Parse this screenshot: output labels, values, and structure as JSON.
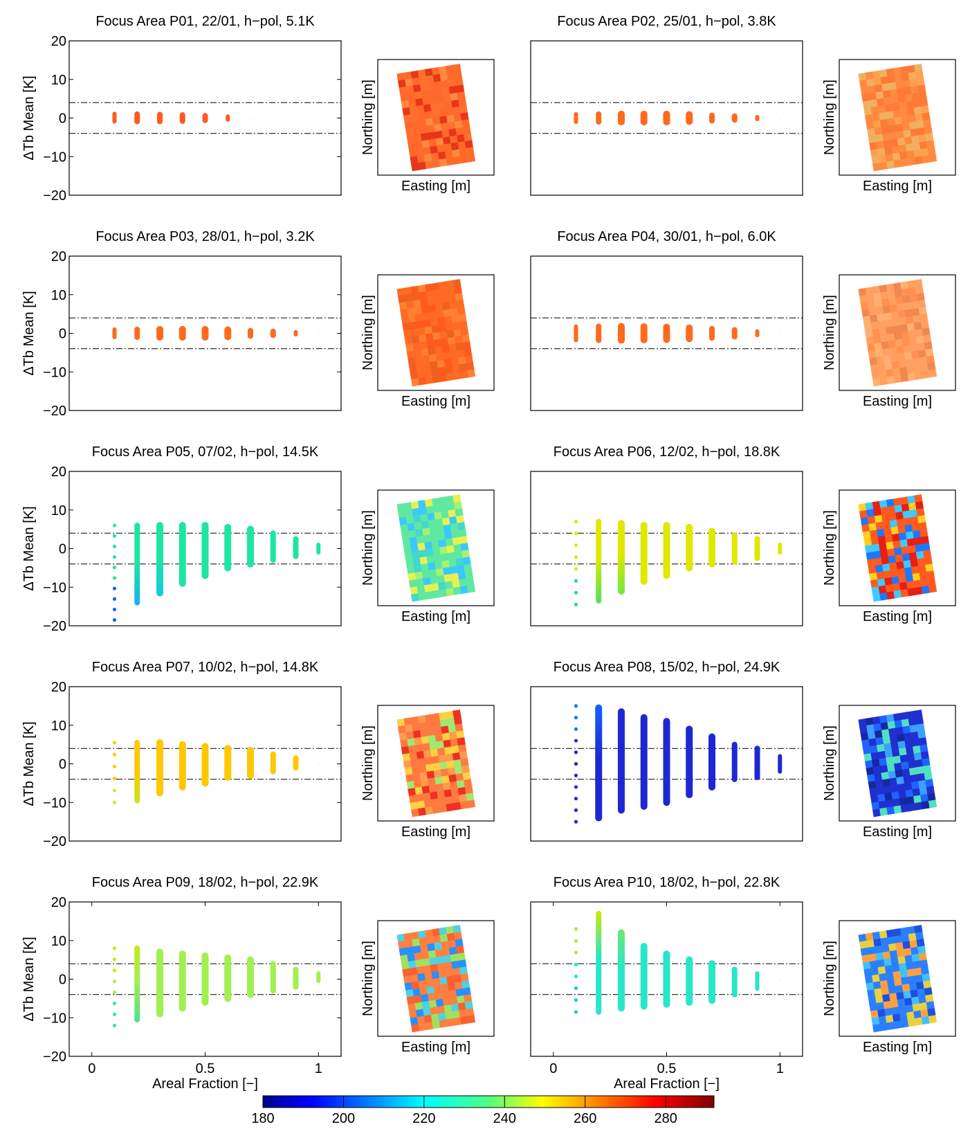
{
  "figure": {
    "colorbar": {
      "min": 180,
      "max": 292,
      "ticks": [
        "180",
        "200",
        "220",
        "240",
        "260",
        "280"
      ],
      "colormap": "jet"
    }
  },
  "chart_data": [
    {
      "type": "scatter",
      "title": "Focus Area  P01, 22/01, h−pol, 5.1K",
      "ylabel": "ΔTb Mean [K]",
      "xlabel": "",
      "ylim": [
        -20,
        20
      ],
      "xlim": [
        -0.1,
        1.1
      ],
      "yticks": [
        "−20",
        "−10",
        "0",
        "10",
        "20"
      ],
      "xticks": [],
      "reference_lines": [
        4,
        -4
      ],
      "marker_color": "#ff5a1e",
      "columns": [
        {
          "x": 0.1,
          "ymin": -0.9,
          "ymax": 1.1,
          "size": 3
        },
        {
          "x": 0.2,
          "ymin": -0.9,
          "ymax": 1.0,
          "size": 4
        },
        {
          "x": 0.3,
          "ymin": -0.9,
          "ymax": 0.9,
          "size": 4
        },
        {
          "x": 0.4,
          "ymin": -0.8,
          "ymax": 0.8,
          "size": 4
        },
        {
          "x": 0.5,
          "ymin": -0.6,
          "ymax": 0.6,
          "size": 4
        },
        {
          "x": 0.6,
          "ymin": -0.4,
          "ymax": 0.4,
          "size": 3
        },
        {
          "x": 0.7,
          "ymin": 0,
          "ymax": 0,
          "size": 1
        }
      ],
      "map": {
        "xlabel": "Easting [m]",
        "ylabel": "Northing [m]",
        "base_color": "#ff6a2a",
        "variation": [
          "#e8361a",
          "#ff8a40",
          "#ff7030"
        ]
      }
    },
    {
      "type": "scatter",
      "title": "Focus Area  P02, 25/01, h−pol, 3.8K",
      "ylabel": "",
      "xlabel": "",
      "ylim": [
        -20,
        20
      ],
      "xlim": [
        -0.1,
        1.1
      ],
      "yticks": [],
      "xticks": [],
      "reference_lines": [
        4,
        -4
      ],
      "marker_color": "#ff6a1e",
      "columns": [
        {
          "x": 0.1,
          "ymin": -1.0,
          "ymax": 1.0,
          "size": 3
        },
        {
          "x": 0.2,
          "ymin": -1.0,
          "ymax": 1.0,
          "size": 4
        },
        {
          "x": 0.3,
          "ymin": -1.0,
          "ymax": 1.0,
          "size": 5
        },
        {
          "x": 0.4,
          "ymin": -1.0,
          "ymax": 1.0,
          "size": 5
        },
        {
          "x": 0.5,
          "ymin": -1.0,
          "ymax": 1.0,
          "size": 5
        },
        {
          "x": 0.6,
          "ymin": -0.9,
          "ymax": 0.9,
          "size": 5
        },
        {
          "x": 0.7,
          "ymin": -0.7,
          "ymax": 0.7,
          "size": 4
        },
        {
          "x": 0.8,
          "ymin": -0.5,
          "ymax": 0.5,
          "size": 4
        },
        {
          "x": 0.9,
          "ymin": -0.3,
          "ymax": 0.3,
          "size": 3
        },
        {
          "x": 1.0,
          "ymin": 0,
          "ymax": 0,
          "size": 1
        }
      ],
      "map": {
        "xlabel": "Easting [m]",
        "ylabel": "Northing [m]",
        "base_color": "#ff8a40",
        "variation": [
          "#ffa050",
          "#ff7a36",
          "#f0b060"
        ]
      }
    },
    {
      "type": "scatter",
      "title": "Focus Area  P03, 28/01, h−pol, 3.2K",
      "ylabel": "ΔTb Mean [K]",
      "xlabel": "",
      "ylim": [
        -20,
        20
      ],
      "xlim": [
        -0.1,
        1.1
      ],
      "yticks": [
        "−20",
        "−10",
        "0",
        "10",
        "20"
      ],
      "xticks": [],
      "reference_lines": [
        4,
        -4
      ],
      "marker_color": "#ff6a1e",
      "columns": [
        {
          "x": 0.1,
          "ymin": -1.0,
          "ymax": 1.0,
          "size": 3
        },
        {
          "x": 0.2,
          "ymin": -1.0,
          "ymax": 1.0,
          "size": 4
        },
        {
          "x": 0.3,
          "ymin": -1.0,
          "ymax": 1.0,
          "size": 5
        },
        {
          "x": 0.4,
          "ymin": -1.0,
          "ymax": 1.0,
          "size": 5
        },
        {
          "x": 0.5,
          "ymin": -1.0,
          "ymax": 1.0,
          "size": 5
        },
        {
          "x": 0.6,
          "ymin": -0.9,
          "ymax": 0.9,
          "size": 5
        },
        {
          "x": 0.7,
          "ymin": -0.7,
          "ymax": 0.7,
          "size": 4
        },
        {
          "x": 0.8,
          "ymin": -0.5,
          "ymax": 0.5,
          "size": 4
        },
        {
          "x": 0.9,
          "ymin": -0.3,
          "ymax": 0.3,
          "size": 3
        },
        {
          "x": 1.0,
          "ymin": 0,
          "ymax": 0,
          "size": 1
        }
      ],
      "map": {
        "xlabel": "Easting [m]",
        "ylabel": "Northing [m]",
        "base_color": "#ff6a24",
        "variation": [
          "#ff5a1e",
          "#ff8030",
          "#f06020"
        ]
      }
    },
    {
      "type": "scatter",
      "title": "Focus Area  P04, 30/01, h−pol, 6.0K",
      "ylabel": "",
      "xlabel": "",
      "ylim": [
        -20,
        20
      ],
      "xlim": [
        -0.1,
        1.1
      ],
      "yticks": [],
      "xticks": [],
      "reference_lines": [
        4,
        -4
      ],
      "marker_color": "#ff6a1e",
      "columns": [
        {
          "x": 0.1,
          "ymin": -1.8,
          "ymax": 1.8,
          "size": 3
        },
        {
          "x": 0.2,
          "ymin": -1.8,
          "ymax": 1.8,
          "size": 4
        },
        {
          "x": 0.3,
          "ymin": -1.8,
          "ymax": 1.8,
          "size": 5
        },
        {
          "x": 0.4,
          "ymin": -1.7,
          "ymax": 1.7,
          "size": 5
        },
        {
          "x": 0.5,
          "ymin": -1.6,
          "ymax": 1.6,
          "size": 5
        },
        {
          "x": 0.6,
          "ymin": -1.4,
          "ymax": 1.4,
          "size": 5
        },
        {
          "x": 0.7,
          "ymin": -1.2,
          "ymax": 1.2,
          "size": 4
        },
        {
          "x": 0.8,
          "ymin": -0.9,
          "ymax": 0.9,
          "size": 4
        },
        {
          "x": 0.9,
          "ymin": -0.5,
          "ymax": 0.5,
          "size": 3
        },
        {
          "x": 1.0,
          "ymin": 0,
          "ymax": 0,
          "size": 1
        }
      ],
      "map": {
        "xlabel": "Easting [m]",
        "ylabel": "Northing [m]",
        "base_color": "#ffa060",
        "variation": [
          "#ff9050",
          "#ffb070",
          "#f08850"
        ]
      }
    },
    {
      "type": "scatter",
      "title": "Focus Area  P05, 07/02, h−pol, 14.5K",
      "ylabel": "ΔTb Mean [K]",
      "xlabel": "",
      "ylim": [
        -20,
        20
      ],
      "xlim": [
        -0.1,
        1.1
      ],
      "yticks": [
        "−20",
        "−10",
        "0",
        "10",
        "20"
      ],
      "xticks": [],
      "reference_lines": [
        4,
        -4
      ],
      "marker_color": "#1ee6a0",
      "columns": [
        {
          "x": 0.1,
          "ymin": -18.5,
          "ymax": 6.0,
          "size": 2,
          "dotted": true,
          "low_color": "#1464ff"
        },
        {
          "x": 0.2,
          "ymin": -14.0,
          "ymax": 6.0,
          "size": 4,
          "low_color": "#14b4f0"
        },
        {
          "x": 0.3,
          "ymin": -11.5,
          "ymax": 6.0,
          "size": 5,
          "low_color": "#14c8e0"
        },
        {
          "x": 0.4,
          "ymin": -9.0,
          "ymax": 6.0,
          "size": 5
        },
        {
          "x": 0.5,
          "ymin": -7.0,
          "ymax": 6.0,
          "size": 5
        },
        {
          "x": 0.6,
          "ymin": -5.0,
          "ymax": 5.5,
          "size": 5
        },
        {
          "x": 0.7,
          "ymin": -4.0,
          "ymax": 5.0,
          "size": 5
        },
        {
          "x": 0.8,
          "ymin": -3.0,
          "ymax": 4.0,
          "size": 4
        },
        {
          "x": 0.9,
          "ymin": -2.0,
          "ymax": 2.5,
          "size": 4
        },
        {
          "x": 1.0,
          "ymin": -1.0,
          "ymax": 1.0,
          "size": 3
        },
        {
          "x": 1.1,
          "ymin": 0,
          "ymax": 0,
          "size": 1
        }
      ],
      "map": {
        "xlabel": "Easting [m]",
        "ylabel": "Northing [m]",
        "base_color": "#60e8a0",
        "variation": [
          "#3cc8ff",
          "#a8f070",
          "#40d8d0",
          "#e8f050"
        ]
      }
    },
    {
      "type": "scatter",
      "title": "Focus Area  P06, 12/02, h−pol, 18.8K",
      "ylabel": "",
      "xlabel": "",
      "ylim": [
        -20,
        20
      ],
      "xlim": [
        -0.1,
        1.1
      ],
      "yticks": [],
      "xticks": [],
      "reference_lines": [
        4,
        -4
      ],
      "marker_color": "#e0e800",
      "columns": [
        {
          "x": 0.1,
          "ymin": -14.5,
          "ymax": 7.0,
          "size": 2,
          "dotted": true,
          "low_color": "#20e080"
        },
        {
          "x": 0.2,
          "ymin": -13.5,
          "ymax": 7.0,
          "size": 4,
          "low_color": "#50e060"
        },
        {
          "x": 0.3,
          "ymin": -11.0,
          "ymax": 6.5,
          "size": 5,
          "low_color": "#70e840"
        },
        {
          "x": 0.4,
          "ymin": -8.5,
          "ymax": 6.0,
          "size": 5
        },
        {
          "x": 0.5,
          "ymin": -7.0,
          "ymax": 6.0,
          "size": 5
        },
        {
          "x": 0.6,
          "ymin": -5.0,
          "ymax": 5.5,
          "size": 5
        },
        {
          "x": 0.7,
          "ymin": -4.0,
          "ymax": 4.5,
          "size": 5
        },
        {
          "x": 0.8,
          "ymin": -3.5,
          "ymax": 3.5,
          "size": 4
        },
        {
          "x": 0.9,
          "ymin": -2.5,
          "ymax": 2.5,
          "size": 4
        },
        {
          "x": 1.0,
          "ymin": -1.0,
          "ymax": 1.0,
          "size": 3
        },
        {
          "x": 1.1,
          "ymin": 0,
          "ymax": 0,
          "size": 1
        }
      ],
      "map": {
        "xlabel": "Easting [m]",
        "ylabel": "Northing [m]",
        "base_color": "#ff5a20",
        "variation": [
          "#1e78ff",
          "#e81e14",
          "#ffd020",
          "#40c8ff"
        ]
      }
    },
    {
      "type": "scatter",
      "title": "Focus Area  P07, 10/02, h−pol, 14.8K",
      "ylabel": "ΔTb Mean [K]",
      "xlabel": "",
      "ylim": [
        -20,
        20
      ],
      "xlim": [
        -0.1,
        1.1
      ],
      "yticks": [
        "−20",
        "−10",
        "0",
        "10",
        "20"
      ],
      "xticks": [],
      "reference_lines": [
        4,
        -4
      ],
      "marker_color": "#ffc800",
      "columns": [
        {
          "x": 0.1,
          "ymin": -10.0,
          "ymax": 5.5,
          "size": 2,
          "dotted": true,
          "low_color": "#d0e830"
        },
        {
          "x": 0.2,
          "ymin": -9.5,
          "ymax": 5.5,
          "size": 4,
          "low_color": "#d0e020"
        },
        {
          "x": 0.3,
          "ymin": -7.5,
          "ymax": 5.5,
          "size": 5
        },
        {
          "x": 0.4,
          "ymin": -6.0,
          "ymax": 5.0,
          "size": 5
        },
        {
          "x": 0.5,
          "ymin": -5.0,
          "ymax": 4.5,
          "size": 5
        },
        {
          "x": 0.6,
          "ymin": -3.5,
          "ymax": 4.0,
          "size": 5
        },
        {
          "x": 0.7,
          "ymin": -3.0,
          "ymax": 3.5,
          "size": 5
        },
        {
          "x": 0.8,
          "ymin": -2.0,
          "ymax": 2.5,
          "size": 4
        },
        {
          "x": 0.9,
          "ymin": -1.0,
          "ymax": 1.5,
          "size": 4
        },
        {
          "x": 1.0,
          "ymin": 0,
          "ymax": 0,
          "size": 1
        }
      ],
      "map": {
        "xlabel": "Easting [m]",
        "ylabel": "Northing [m]",
        "base_color": "#ff7a40",
        "variation": [
          "#f03020",
          "#ffd040",
          "#a0e870",
          "#ff9a50"
        ]
      }
    },
    {
      "type": "scatter",
      "title": "Focus Area  P08, 15/02, h−pol, 24.9K",
      "ylabel": "",
      "xlabel": "",
      "ylim": [
        -20,
        20
      ],
      "xlim": [
        -0.1,
        1.1
      ],
      "yticks": [],
      "xticks": [],
      "reference_lines": [
        4,
        -4
      ],
      "marker_color": "#1e28d2",
      "columns": [
        {
          "x": 0.1,
          "ymin": -15.0,
          "ymax": 15.0,
          "size": 2,
          "dotted": true,
          "top_color": "#1478ff"
        },
        {
          "x": 0.2,
          "ymin": -14.0,
          "ymax": 14.5,
          "size": 5,
          "top_color": "#1464ff"
        },
        {
          "x": 0.3,
          "ymin": -12.0,
          "ymax": 13.5,
          "size": 5
        },
        {
          "x": 0.4,
          "ymin": -11.0,
          "ymax": 12.0,
          "size": 5
        },
        {
          "x": 0.5,
          "ymin": -10.0,
          "ymax": 11.0,
          "size": 5
        },
        {
          "x": 0.6,
          "ymin": -8.0,
          "ymax": 9.0,
          "size": 5
        },
        {
          "x": 0.7,
          "ymin": -6.0,
          "ymax": 7.0,
          "size": 5
        },
        {
          "x": 0.8,
          "ymin": -4.0,
          "ymax": 5.0,
          "size": 4
        },
        {
          "x": 0.9,
          "ymin": -3.5,
          "ymax": 4.0,
          "size": 4
        },
        {
          "x": 1.0,
          "ymin": -2.0,
          "ymax": 2.0,
          "size": 3
        },
        {
          "x": 1.1,
          "ymin": 0,
          "ymax": 0,
          "size": 1
        }
      ],
      "map": {
        "xlabel": "Easting [m]",
        "ylabel": "Northing [m]",
        "base_color": "#2030d0",
        "variation": [
          "#1e64ff",
          "#1428a0",
          "#3ca0ff",
          "#50e0c0"
        ]
      }
    },
    {
      "type": "scatter",
      "title": "Focus Area  P09, 18/02, h−pol, 22.9K",
      "ylabel": "ΔTb Mean [K]",
      "xlabel": "Areal Fraction [−]",
      "ylim": [
        -20,
        20
      ],
      "xlim": [
        -0.1,
        1.1
      ],
      "yticks": [
        "−20",
        "−10",
        "0",
        "10",
        "20"
      ],
      "xticks": [
        "0",
        "0.5",
        "1"
      ],
      "xtick_values": [
        0,
        0.5,
        1
      ],
      "reference_lines": [
        4,
        -4
      ],
      "marker_color": "#a0f050",
      "columns": [
        {
          "x": 0.1,
          "ymin": -12.0,
          "ymax": 8.0,
          "size": 2,
          "dotted": true,
          "top_color": "#d0e800",
          "low_color": "#40e0a0"
        },
        {
          "x": 0.2,
          "ymin": -10.5,
          "ymax": 8.0,
          "size": 4,
          "top_color": "#c0e820",
          "low_color": "#50e090"
        },
        {
          "x": 0.3,
          "ymin": -9.0,
          "ymax": 7.0,
          "size": 5
        },
        {
          "x": 0.4,
          "ymin": -7.5,
          "ymax": 6.5,
          "size": 5
        },
        {
          "x": 0.5,
          "ymin": -6.0,
          "ymax": 6.0,
          "size": 5
        },
        {
          "x": 0.6,
          "ymin": -5.0,
          "ymax": 5.5,
          "size": 5
        },
        {
          "x": 0.7,
          "ymin": -4.0,
          "ymax": 5.0,
          "size": 5
        },
        {
          "x": 0.8,
          "ymin": -3.0,
          "ymax": 4.0,
          "size": 4
        },
        {
          "x": 0.9,
          "ymin": -2.0,
          "ymax": 2.5,
          "size": 4
        },
        {
          "x": 1.0,
          "ymin": -0.5,
          "ymax": 1.5,
          "size": 3
        },
        {
          "x": 1.1,
          "ymin": 0,
          "ymax": 0,
          "size": 1
        }
      ],
      "map": {
        "xlabel": "Easting [m]",
        "ylabel": "Northing [m]",
        "base_color": "#ff8040",
        "variation": [
          "#2890ff",
          "#50d0e0",
          "#ff6030",
          "#a0e060"
        ]
      }
    },
    {
      "type": "scatter",
      "title": "Focus Area  P10, 18/02, h−pol, 22.8K",
      "ylabel": "",
      "xlabel": "Areal Fraction [−]",
      "ylim": [
        -20,
        20
      ],
      "xlim": [
        -0.1,
        1.1
      ],
      "yticks": [],
      "xticks": [
        "0",
        "0.5",
        "1"
      ],
      "xtick_values": [
        0,
        0.5,
        1
      ],
      "reference_lines": [
        4,
        -4
      ],
      "marker_color": "#28e6c8",
      "columns": [
        {
          "x": 0.1,
          "ymin": -8.5,
          "ymax": 13.0,
          "size": 2,
          "dotted": true,
          "top_color": "#a0f040",
          "low_color": "#14c8e0"
        },
        {
          "x": 0.2,
          "ymin": -8.5,
          "ymax": 17.0,
          "size": 4,
          "top_color": "#d0e800"
        },
        {
          "x": 0.3,
          "ymin": -7.5,
          "ymax": 12.0,
          "size": 5,
          "top_color": "#70e870"
        },
        {
          "x": 0.4,
          "ymin": -7.0,
          "ymax": 8.5,
          "size": 5
        },
        {
          "x": 0.5,
          "ymin": -6.5,
          "ymax": 6.5,
          "size": 5
        },
        {
          "x": 0.6,
          "ymin": -6.0,
          "ymax": 5.0,
          "size": 5
        },
        {
          "x": 0.7,
          "ymin": -5.5,
          "ymax": 4.0,
          "size": 5
        },
        {
          "x": 0.8,
          "ymin": -4.0,
          "ymax": 2.5,
          "size": 4
        },
        {
          "x": 0.9,
          "ymin": -2.5,
          "ymax": 1.5,
          "size": 3
        },
        {
          "x": 1.0,
          "ymin": 0,
          "ymax": 0,
          "size": 1
        }
      ],
      "map": {
        "xlabel": "Easting [m]",
        "ylabel": "Northing [m]",
        "base_color": "#2c80ff",
        "variation": [
          "#ffa040",
          "#1e50e0",
          "#40c0ff",
          "#e8d040"
        ]
      }
    }
  ]
}
